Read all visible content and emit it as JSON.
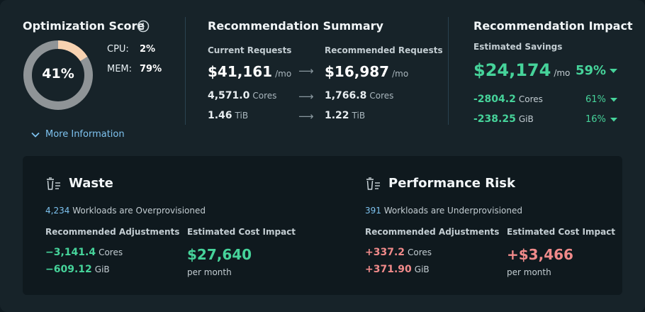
{
  "colors": {
    "card_bg": "#172329",
    "panel_bg": "#0f191e",
    "green": "#46d39a",
    "red": "#f08a8a",
    "blue": "#7ec3f0",
    "donut_track": "#8f9497",
    "donut_cpu": "#f7d2b1"
  },
  "optimization": {
    "title": "Optimization Score",
    "info_icon": "info-icon",
    "score": "41%",
    "score_fraction": 0.41,
    "cpu_label": "CPU:",
    "cpu_value": "2%",
    "mem_label": "MEM:",
    "mem_value": "79%",
    "more_info": "More Information",
    "more_info_icon": "chevron-down-icon"
  },
  "summary": {
    "title": "Recommendation Summary",
    "current_label": "Current Requests",
    "recommended_label": "Recommended Requests",
    "current_cost": "$41,161",
    "recommended_cost": "$16,987",
    "per_mo": "/mo",
    "current_cores": "4,571.0",
    "recommended_cores": "1,766.8",
    "cores_unit": "Cores",
    "current_mem": "1.46",
    "recommended_mem": "1.22",
    "mem_unit": "TiB",
    "arrow_icon": "arrow-right-icon"
  },
  "impact": {
    "title": "Recommendation Impact",
    "savings_label": "Estimated Savings",
    "savings": "$24,174",
    "per_mo": "/mo",
    "savings_pct": "59%",
    "cores_delta": "-2804.2",
    "cores_unit": "Cores",
    "cores_pct": "61%",
    "mem_delta": "-238.25",
    "mem_unit": "GiB",
    "mem_pct": "16%",
    "caret_icon": "caret-down-icon"
  },
  "waste": {
    "title": "Waste",
    "icon": "trash-list-icon",
    "count": "4,234",
    "count_text": "Workloads are Overprovisioned",
    "adjust_label": "Recommended Adjustments",
    "cost_label": "Estimated Cost Impact",
    "cores": "−3,141.4",
    "cores_unit": "Cores",
    "mem": "−609.12",
    "mem_unit": "GiB",
    "cost": "$27,640",
    "per_month": "per month"
  },
  "risk": {
    "title": "Performance Risk",
    "icon": "trash-list-icon",
    "count": "391",
    "count_text": "Workloads are Underprovisioned",
    "adjust_label": "Recommended Adjustments",
    "cost_label": "Estimated Cost Impact",
    "cores": "+337.2",
    "cores_unit": "Cores",
    "mem": "+371.90",
    "mem_unit": "GiB",
    "cost": "+$3,466",
    "per_month": "per month"
  }
}
